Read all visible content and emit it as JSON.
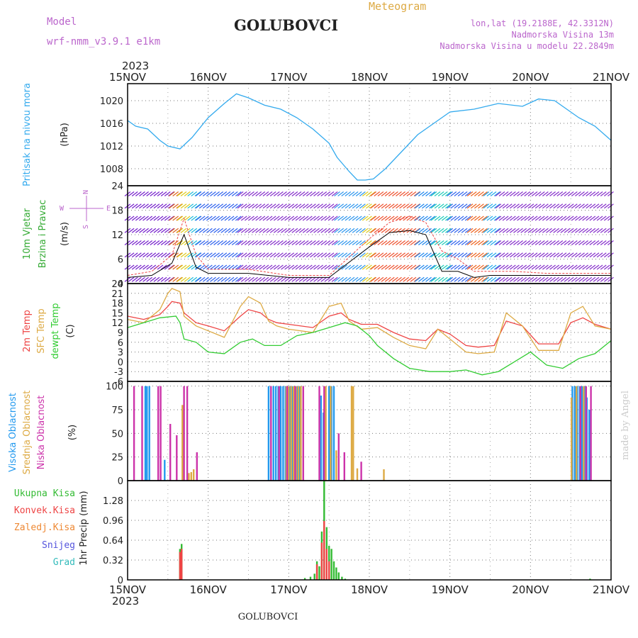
{
  "header": {
    "model_label": "Model",
    "model_name": "wrf-nmm_v3.9.1 e1km",
    "station": "GOLUBOVCI",
    "meteogram": "Meteogram",
    "lonlat": "lon,lat (19.2188E, 42.3312N)",
    "elevation": "Nadmorska Visina 13m",
    "model_elevation": "Nadmorska Visina u modelu 22.2849m"
  },
  "footer": {
    "station": "GOLUBOVCI",
    "credit": "made by Angel"
  },
  "colors": {
    "pressure": "#33aaee",
    "temp2m": "#ee4444",
    "sfc_temp": "#ddaa44",
    "dewpt": "#33cc33",
    "high_cloud": "#2299ee",
    "mid_cloud": "#ddaa44",
    "low_cloud": "#cc33aa",
    "total_precip": "#33bb33",
    "conv_precip": "#ee4444",
    "frozen": "#ee8833",
    "snow": "#5555dd",
    "graupel": "#33bbbb",
    "wind_axis_label": "#33aa33",
    "wind_legend": "#bb66cc",
    "title": "#222222"
  },
  "chart_data": [
    {
      "type": "line",
      "panel": "pressure",
      "year": "2023",
      "x_ticks": [
        "15NOV",
        "16NOV",
        "17NOV",
        "18NOV",
        "19NOV",
        "20NOV",
        "21NOV"
      ],
      "ylabel": "Pritisak na nivou mora",
      "unit": "(hPa)",
      "yticks": [
        1008,
        1012,
        1016,
        1020
      ],
      "ylim": [
        1005,
        1023
      ],
      "series": [
        {
          "color": "#33aaee",
          "x": [
            0,
            0.1,
            0.25,
            0.4,
            0.5,
            0.65,
            0.8,
            1.0,
            1.2,
            1.35,
            1.5,
            1.7,
            1.9,
            2.1,
            2.3,
            2.5,
            2.6,
            2.75,
            2.85,
            2.95,
            3.05,
            3.2,
            3.4,
            3.6,
            3.8,
            4.0,
            4.3,
            4.6,
            4.9,
            5.1,
            5.3,
            5.6,
            5.8,
            6.0
          ],
          "values": [
            1016.5,
            1015.5,
            1015,
            1013,
            1012,
            1011.5,
            1013.5,
            1017,
            1019.5,
            1021.2,
            1020.5,
            1019.2,
            1018.5,
            1017,
            1015,
            1012.5,
            1010,
            1007.5,
            1006,
            1006,
            1006.2,
            1008,
            1011,
            1014,
            1016,
            1018,
            1018.5,
            1019.5,
            1019,
            1020.3,
            1020,
            1017,
            1015.5,
            1013
          ]
        }
      ]
    },
    {
      "type": "scatter",
      "panel": "wind",
      "ylabel": "10m Vjetar",
      "ylabel2": "Brzina i Pravac",
      "unit": "(m/s)",
      "yticks": [
        0,
        6,
        12,
        18,
        24
      ],
      "ylim": [
        0,
        24
      ],
      "direction_legend": [
        "N",
        "W",
        "E",
        "S"
      ],
      "series": [
        {
          "name": "speed",
          "color": "#000000",
          "x": [
            0,
            0.3,
            0.55,
            0.7,
            0.85,
            1.0,
            1.5,
            2.0,
            2.5,
            3.0,
            3.25,
            3.5,
            3.7,
            3.9,
            4.1,
            4.3,
            4.5,
            4.8,
            5.2,
            5.6,
            6.0
          ],
          "values": [
            1.5,
            2,
            5,
            12,
            4,
            2.5,
            2.5,
            1.5,
            1.5,
            9,
            12.5,
            13,
            12,
            3,
            3,
            1.5,
            2,
            2,
            2,
            2,
            2
          ]
        },
        {
          "name": "gust",
          "color": "#ee4444",
          "x": [
            0,
            0.3,
            0.55,
            0.7,
            0.85,
            1.0,
            1.5,
            2.0,
            2.5,
            3.0,
            3.25,
            3.5,
            3.7,
            3.9,
            4.1,
            4.3,
            4.5,
            4.8,
            5.2,
            5.6,
            6.0
          ],
          "values": [
            2,
            3,
            7,
            16,
            7,
            3.5,
            3.5,
            2,
            2,
            11,
            15,
            16.5,
            15,
            8,
            6,
            3,
            3,
            3,
            2.5,
            2.5,
            2.5
          ]
        }
      ]
    },
    {
      "type": "line",
      "panel": "temperature",
      "ylabels": [
        "2m Temp",
        "SFC Temp",
        "dewpt Temp"
      ],
      "unit": "(C)",
      "yticks": [
        -6,
        -3,
        0,
        3,
        6,
        9,
        12,
        15,
        18,
        21,
        24
      ],
      "ylim": [
        -6,
        24
      ],
      "series": [
        {
          "name": "2m Temp",
          "color": "#ee4444",
          "x": [
            0,
            0.2,
            0.4,
            0.5,
            0.55,
            0.65,
            0.7,
            0.85,
            1.0,
            1.2,
            1.4,
            1.5,
            1.65,
            1.75,
            1.85,
            2.0,
            2.3,
            2.5,
            2.65,
            2.75,
            2.9,
            3.1,
            3.3,
            3.5,
            3.7,
            3.85,
            4.0,
            4.2,
            4.35,
            4.55,
            4.7,
            4.9,
            5.1,
            5.35,
            5.5,
            5.65,
            5.8,
            6.0
          ],
          "values": [
            14,
            13,
            14.5,
            17,
            18.5,
            18,
            15,
            12,
            11,
            9.5,
            14,
            16,
            15,
            13,
            12,
            11.5,
            10.5,
            14,
            15,
            13,
            11.5,
            11.5,
            9,
            7,
            6.5,
            10,
            8.5,
            5,
            4.5,
            5,
            12.5,
            11,
            5.5,
            5.5,
            12,
            13.5,
            11.5,
            10
          ]
        },
        {
          "name": "SFC Temp",
          "color": "#ddaa44",
          "x": [
            0,
            0.2,
            0.4,
            0.5,
            0.55,
            0.65,
            0.7,
            0.85,
            1.0,
            1.2,
            1.4,
            1.5,
            1.65,
            1.75,
            1.85,
            2.0,
            2.3,
            2.5,
            2.65,
            2.75,
            2.9,
            3.1,
            3.3,
            3.5,
            3.7,
            3.85,
            4.0,
            4.2,
            4.35,
            4.55,
            4.7,
            4.9,
            5.1,
            5.35,
            5.5,
            5.65,
            5.8,
            6.0
          ],
          "values": [
            13,
            12,
            16,
            21,
            22.5,
            21.5,
            14,
            11,
            9.5,
            7.5,
            17,
            20,
            18,
            12.5,
            11,
            10,
            9,
            17,
            18,
            12.5,
            10,
            10.5,
            7.5,
            5,
            4,
            10,
            7,
            3,
            2.5,
            3,
            15,
            11,
            3.5,
            3.5,
            15,
            17,
            11,
            10
          ]
        },
        {
          "name": "dewpt Temp",
          "color": "#33cc33",
          "x": [
            0,
            0.2,
            0.4,
            0.6,
            0.65,
            0.7,
            0.85,
            1.0,
            1.2,
            1.4,
            1.55,
            1.7,
            1.9,
            2.1,
            2.3,
            2.5,
            2.7,
            2.85,
            3.0,
            3.1,
            3.3,
            3.5,
            3.75,
            4.0,
            4.2,
            4.4,
            4.6,
            4.8,
            5.0,
            5.2,
            5.4,
            5.6,
            5.8,
            6.0
          ],
          "values": [
            10.5,
            12,
            13.5,
            14,
            12,
            7,
            6,
            3,
            2.5,
            6,
            7,
            5,
            5,
            8,
            9,
            10.5,
            12,
            11,
            8,
            5,
            1,
            -2,
            -3,
            -3,
            -2.5,
            -4,
            -3,
            0,
            3,
            -1,
            -2,
            1,
            2.5,
            6.5
          ]
        }
      ]
    },
    {
      "type": "bar",
      "panel": "clouds",
      "ylabels": [
        "Visoka Oblacnost",
        "Srednja Oblacnost",
        "Niska Oblacnost"
      ],
      "unit": "(%)",
      "yticks": [
        0,
        25,
        50,
        75,
        100
      ],
      "ylim": [
        0,
        105
      ],
      "series": [
        {
          "name": "Visoka Oblacnost",
          "color": "#2299ee",
          "x": [
            0.22,
            0.24,
            0.27,
            0.46,
            1.75,
            1.78,
            1.81,
            1.84,
            1.87,
            1.9,
            1.93,
            1.96,
            1.99,
            2.02,
            2.05,
            2.08,
            2.11,
            2.14,
            2.4,
            2.43,
            2.5,
            2.53,
            2.56,
            5.52,
            5.55,
            5.58,
            5.61,
            5.64,
            5.67,
            5.7,
            5.73
          ],
          "values": [
            100,
            100,
            100,
            22,
            100,
            100,
            100,
            100,
            100,
            100,
            100,
            100,
            100,
            100,
            100,
            100,
            100,
            100,
            90,
            72,
            100,
            100,
            100,
            100,
            100,
            100,
            100,
            100,
            100,
            88,
            75
          ]
        },
        {
          "name": "Srednja Oblacnost",
          "color": "#ddaa44",
          "x": [
            0.68,
            0.76,
            0.79,
            0.82,
            1.97,
            2.0,
            2.03,
            2.06,
            2.09,
            2.12,
            2.15,
            2.18,
            2.46,
            2.52,
            2.59,
            2.78,
            2.8,
            2.85,
            3.18,
            5.51,
            5.57,
            5.66
          ],
          "values": [
            80,
            8,
            9,
            12,
            100,
            100,
            100,
            100,
            100,
            100,
            100,
            100,
            100,
            100,
            32,
            100,
            100,
            13,
            12,
            88,
            100,
            100
          ]
        },
        {
          "name": "Niska Oblacnost",
          "color": "#cc33aa",
          "x": [
            0.08,
            0.18,
            0.38,
            0.41,
            0.53,
            0.61,
            0.7,
            0.74,
            0.86,
            1.78,
            1.88,
            1.98,
            2.08,
            2.18,
            2.38,
            2.44,
            2.62,
            2.69,
            2.9,
            5.62,
            5.69,
            5.75
          ],
          "values": [
            100,
            100,
            100,
            100,
            60,
            48,
            100,
            100,
            30,
            100,
            100,
            100,
            100,
            100,
            100,
            100,
            50,
            30,
            20,
            100,
            100,
            100
          ]
        }
      ]
    },
    {
      "type": "bar",
      "panel": "precipitation",
      "ylabels": [
        "Ukupna Kisa",
        "Konvek.Kisa",
        "Zaledj.Kisa",
        "Snijeg",
        "Grad"
      ],
      "unit": "1hr Precip (mm)",
      "yticks": [
        0,
        0.32,
        0.64,
        0.96,
        1.28
      ],
      "ylim": [
        0,
        1.6
      ],
      "x_ticks_bottom": [
        "15NOV",
        "16NOV",
        "17NOV",
        "18NOV",
        "19NOV",
        "20NOV",
        "21NOV"
      ],
      "year_bottom": "2023",
      "series": [
        {
          "name": "Ukupna Kisa",
          "color": "#33bb33",
          "x": [
            0.65,
            0.67,
            2.2,
            2.27,
            2.32,
            2.35,
            2.38,
            2.41,
            2.44,
            2.47,
            2.5,
            2.53,
            2.56,
            2.59,
            2.62,
            2.66,
            2.7,
            5.74
          ],
          "values": [
            0.5,
            0.58,
            0.03,
            0.05,
            0.1,
            0.3,
            0.22,
            0.78,
            1.6,
            0.85,
            0.55,
            0.5,
            0.3,
            0.2,
            0.12,
            0.05,
            0.02,
            0.02
          ]
        },
        {
          "name": "Konvek.Kisa",
          "color": "#ee4444",
          "x": [
            0.65,
            0.67,
            2.35,
            2.41,
            2.44,
            2.47,
            2.5
          ],
          "values": [
            0.45,
            0.5,
            0.25,
            0.6,
            0.95,
            0.5,
            0.3
          ]
        }
      ]
    }
  ]
}
